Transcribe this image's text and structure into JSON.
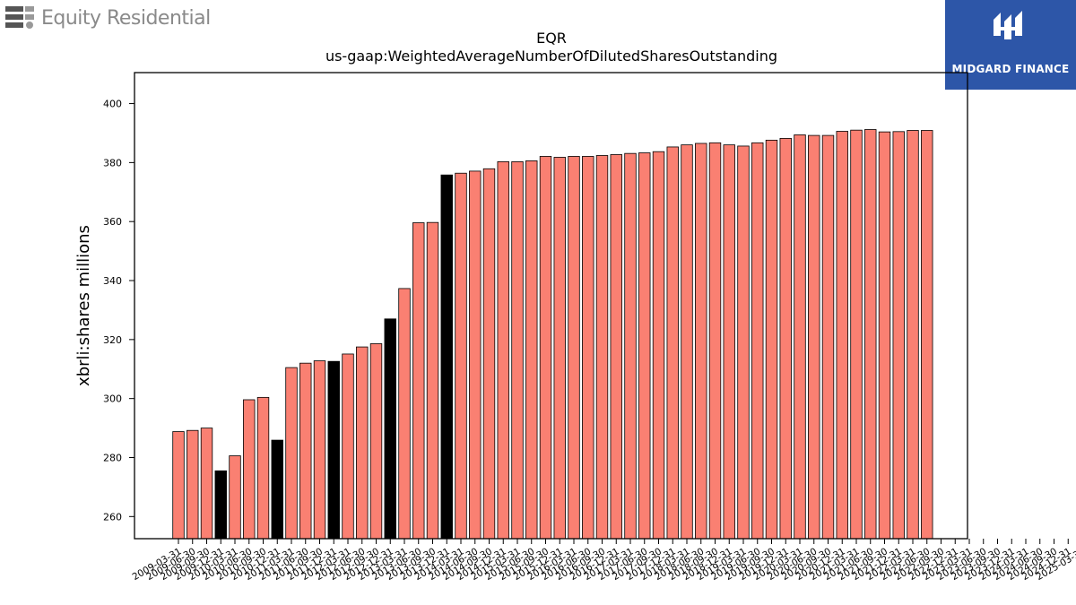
{
  "branding": {
    "left_logo_text": "Equity Residential",
    "right_logo_text": "MIDGARD FINANCE",
    "left_logo_color": "#8a8a8a",
    "right_logo_bg": "#2d56a8"
  },
  "chart_data": {
    "type": "bar",
    "title": "EQR",
    "subtitle": "us-gaap:WeightedAverageNumberOfDilutedSharesOutstanding",
    "xlabel": "",
    "ylabel": "xbrli:shares millions",
    "ylim": [
      252.5,
      410.5
    ],
    "yticks": [
      260,
      280,
      300,
      320,
      340,
      360,
      380,
      400
    ],
    "grid": false,
    "colors": {
      "default": "#fa8072",
      "highlight": "#000000",
      "edge": "#000000"
    },
    "categories": [
      "2009-03-31",
      "2009-06-30",
      "2009-09-30",
      "2009-12-31",
      "2010-03-31",
      "2010-06-30",
      "2010-09-30",
      "2010-12-31",
      "2011-03-31",
      "2011-06-30",
      "2011-09-30",
      "2011-12-31",
      "2012-03-31",
      "2012-06-30",
      "2012-09-30",
      "2012-12-31",
      "2013-03-31",
      "2013-06-30",
      "2013-09-30",
      "2013-12-31",
      "2014-03-31",
      "2014-06-30",
      "2014-09-30",
      "2014-12-31",
      "2015-03-31",
      "2015-06-30",
      "2015-09-30",
      "2015-12-31",
      "2016-03-31",
      "2016-06-30",
      "2016-09-30",
      "2016-12-31",
      "2017-03-31",
      "2017-06-30",
      "2017-09-30",
      "2017-12-31",
      "2018-03-31",
      "2018-06-30",
      "2018-09-30",
      "2018-12-31",
      "2019-03-31",
      "2019-06-30",
      "2019-09-30",
      "2019-12-31",
      "2020-03-31",
      "2020-06-30",
      "2020-09-30",
      "2020-12-31",
      "2021-03-31",
      "2021-06-30",
      "2021-09-30",
      "2021-12-31",
      "2022-03-31",
      "2022-06-30",
      "2022-09-30",
      "2022-12-31",
      "2023-03-31",
      "2023-06-30",
      "2023-09-30",
      "2023-12-31",
      "2024-03-31",
      "2024-06-30",
      "2024-09-30",
      "2024-12-31",
      "2025-03-31"
    ],
    "tick_labels": [
      "2009-03-31",
      "2009-06-30",
      "2009-09-30",
      "2009-12-31",
      "2010-03-31",
      "2010-06-30",
      "2010-09-30",
      "2010-12-31",
      "2011-03-31",
      "2011-06-30",
      "2011-09-30",
      "2011-12-31",
      "2012-03-31",
      "2012-06-30",
      "2012-09-30",
      "2012-12-31",
      "2013-03-31",
      "2013-06-30",
      "2013-09-30",
      "2013-12-31",
      "2014-03-31",
      "2014-06-30",
      "2014-09-30",
      "2014-12-31",
      "2015-03-31",
      "2015-06-30",
      "2015-09-30",
      "2015-12-31",
      "2016-03-31",
      "2016-06-30",
      "2016-09-30",
      "2016-12-31",
      "2017-03-31",
      "2017-06-30",
      "2017-09-30",
      "2017-12-31",
      "2018-03-31",
      "2018-06-30",
      "2018-09-30",
      "2018-12-31",
      "2019-03-31",
      "2019-06-30",
      "2019-09-30",
      "2019-12-31",
      "2020-03-31",
      "2020-06-30",
      "2020-09-30",
      "2020-12-31",
      "2021-03-31",
      "2021-06-30",
      "2021-09-30",
      "2021-12-31",
      "2022-03-31",
      "2022-06-30",
      "2022-09-30",
      "2022-12-31",
      "2023-03-31",
      "2023-06-30",
      "2023-09-30",
      "2023-12-31",
      "2024-03-31",
      "2024-06-30",
      "2024-09-30",
      "2024-12-31",
      "2025-03-31"
    ],
    "values": [
      288.8,
      289.2,
      290.0,
      275.5,
      280.6,
      299.6,
      300.4,
      285.9,
      310.5,
      312.0,
      312.8,
      312.6,
      315.1,
      317.5,
      318.6,
      327.0,
      337.3,
      359.6,
      359.7,
      375.8,
      376.4,
      377.1,
      377.9,
      380.3,
      380.3,
      380.6,
      382.1,
      381.8,
      382.1,
      382.1,
      382.4,
      382.7,
      383.1,
      383.3,
      383.7,
      385.3,
      386.0,
      386.5,
      386.7,
      386.0,
      385.6,
      386.7,
      387.6,
      388.2,
      389.4,
      389.2,
      389.2,
      390.6,
      391.0,
      391.2,
      390.4,
      390.5,
      390.9,
      390.9,
      null,
      null,
      null,
      null,
      null,
      null,
      null,
      null,
      null,
      null,
      null
    ],
    "highlighted": [
      3,
      7,
      11,
      15,
      19
    ]
  }
}
